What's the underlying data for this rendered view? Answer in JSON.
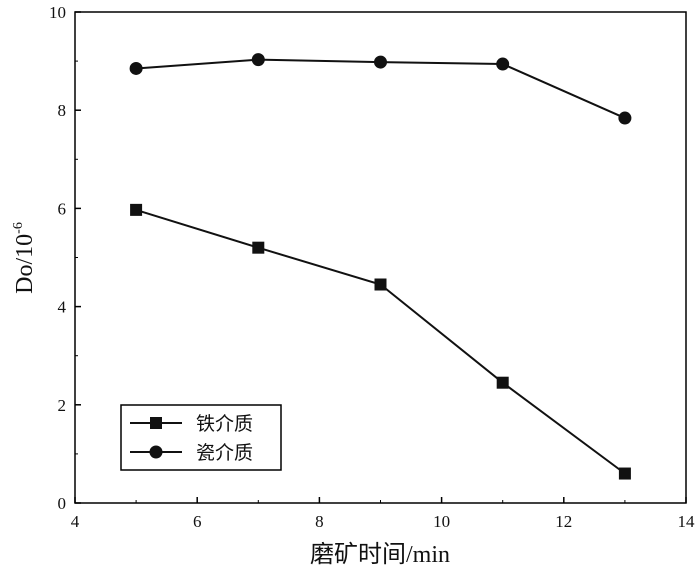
{
  "chart_data": {
    "type": "line",
    "xlabel": "磨矿时间/min",
    "ylabel_main": "Do/10",
    "ylabel_exp": "-6",
    "xlim": [
      4,
      14
    ],
    "ylim": [
      0,
      10
    ],
    "xticks": [
      4,
      6,
      8,
      10,
      12,
      14
    ],
    "yticks": [
      0,
      2,
      4,
      6,
      8,
      10
    ],
    "grid": false,
    "legend_position": "bottom-left",
    "x": [
      5,
      7,
      9,
      11,
      13
    ],
    "series": [
      {
        "name": "铁介质",
        "marker": "square",
        "values": [
          5.97,
          5.2,
          4.45,
          2.45,
          0.6
        ]
      },
      {
        "name": "瓷介质",
        "marker": "circle",
        "values": [
          8.85,
          9.03,
          8.98,
          8.94,
          7.84
        ]
      }
    ],
    "colors": {
      "line": "#111111",
      "axis": "#000000"
    }
  }
}
